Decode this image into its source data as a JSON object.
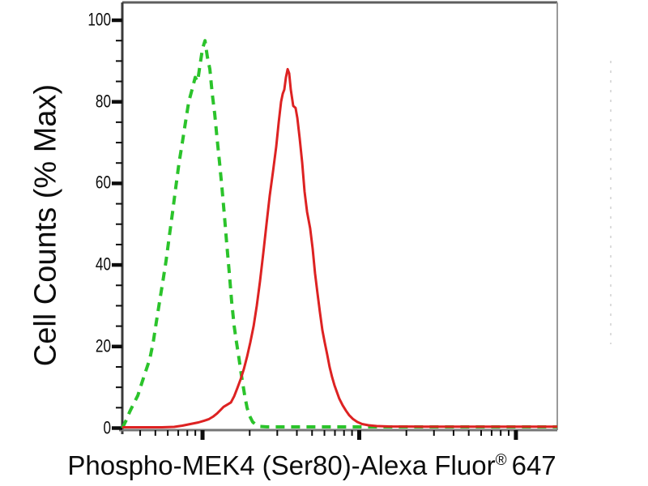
{
  "chart_data": {
    "type": "line",
    "subtype": "flow-cytometry-overlay-histogram",
    "title": "",
    "ylabel": "Cell Counts (% Max)",
    "xlabel_main": "Phospho-MEK4 (Ser80)-Alexa Fluor",
    "xlabel_sup": "®",
    "xlabel_suffix": "647",
    "grid": false,
    "legend": "none",
    "x_axis": {
      "scale": "log10",
      "range_log": [
        0.488,
        3.264
      ],
      "major_ticks_log": [
        1.0,
        2.0,
        3.0
      ],
      "minor_ticks_log": [
        0.602,
        0.699,
        0.778,
        0.845,
        0.903,
        0.954,
        1.301,
        1.477,
        1.602,
        1.699,
        1.778,
        1.845,
        1.903,
        1.954,
        2.301,
        2.477,
        2.602,
        2.699,
        2.778,
        2.845,
        2.903,
        2.954
      ],
      "tick_labels": []
    },
    "y_axis": {
      "range": [
        0,
        100
      ],
      "major_ticks": [
        0,
        20,
        40,
        60,
        80,
        100
      ],
      "major_tick_labels": [
        "0",
        "20",
        "40",
        "60",
        "80",
        "100"
      ],
      "minor_tick_step": 5
    },
    "series": [
      {
        "name": "green-dashed",
        "style": "dashed",
        "color": "#2bc32b",
        "peak": {
          "x_log": 1.016,
          "y_pct": 95
        },
        "points": [
          [
            0.488,
            0
          ],
          [
            0.514,
            2
          ],
          [
            0.535,
            4
          ],
          [
            0.561,
            6
          ],
          [
            0.587,
            8
          ],
          [
            0.612,
            11
          ],
          [
            0.638,
            14
          ],
          [
            0.664,
            17
          ],
          [
            0.685,
            21
          ],
          [
            0.705,
            26
          ],
          [
            0.726,
            31
          ],
          [
            0.747,
            36
          ],
          [
            0.767,
            41
          ],
          [
            0.788,
            47
          ],
          [
            0.809,
            53
          ],
          [
            0.829,
            59
          ],
          [
            0.85,
            65
          ],
          [
            0.871,
            70
          ],
          [
            0.891,
            75
          ],
          [
            0.912,
            80
          ],
          [
            0.933,
            83
          ],
          [
            0.953,
            86
          ],
          [
            0.969,
            85
          ],
          [
            0.984,
            89
          ],
          [
            1.0,
            93
          ],
          [
            1.016,
            95
          ],
          [
            1.031,
            91
          ],
          [
            1.047,
            88
          ],
          [
            1.062,
            82
          ],
          [
            1.078,
            77
          ],
          [
            1.093,
            71
          ],
          [
            1.109,
            65
          ],
          [
            1.124,
            59
          ],
          [
            1.14,
            52
          ],
          [
            1.155,
            45
          ],
          [
            1.171,
            38
          ],
          [
            1.186,
            31
          ],
          [
            1.202,
            25
          ],
          [
            1.217,
            21
          ],
          [
            1.233,
            17
          ],
          [
            1.248,
            13
          ],
          [
            1.269,
            8
          ],
          [
            1.284,
            5
          ],
          [
            1.3,
            3
          ],
          [
            1.32,
            1.5
          ],
          [
            1.341,
            0.8
          ],
          [
            1.367,
            0.4
          ],
          [
            1.413,
            0.3
          ],
          [
            1.568,
            0.3
          ],
          [
            1.775,
            0.3
          ],
          [
            2.034,
            0.3
          ],
          [
            2.395,
            0.3
          ],
          [
            2.809,
            0.3
          ],
          [
            3.264,
            0.3
          ]
        ]
      },
      {
        "name": "red-solid",
        "style": "solid",
        "color": "#dd2222",
        "peak": {
          "x_log": 1.543,
          "y_pct": 88
        },
        "points": [
          [
            0.488,
            0.2
          ],
          [
            0.742,
            0.2
          ],
          [
            0.819,
            0.3
          ],
          [
            0.871,
            0.6
          ],
          [
            0.922,
            1
          ],
          [
            0.974,
            1.4
          ],
          [
            1.01,
            1.8
          ],
          [
            1.041,
            2.2
          ],
          [
            1.067,
            2.8
          ],
          [
            1.093,
            3.6
          ],
          [
            1.114,
            4.4
          ],
          [
            1.134,
            5.2
          ],
          [
            1.16,
            5.8
          ],
          [
            1.181,
            6.3
          ],
          [
            1.202,
            7.8
          ],
          [
            1.222,
            9.8
          ],
          [
            1.243,
            12
          ],
          [
            1.264,
            14.5
          ],
          [
            1.284,
            17.5
          ],
          [
            1.305,
            21
          ],
          [
            1.326,
            25
          ],
          [
            1.346,
            30
          ],
          [
            1.367,
            36
          ],
          [
            1.388,
            43
          ],
          [
            1.408,
            50
          ],
          [
            1.429,
            57
          ],
          [
            1.45,
            63
          ],
          [
            1.47,
            69
          ],
          [
            1.486,
            75
          ],
          [
            1.501,
            80
          ],
          [
            1.512,
            82
          ],
          [
            1.522,
            83
          ],
          [
            1.532,
            86
          ],
          [
            1.543,
            88
          ],
          [
            1.553,
            87
          ],
          [
            1.563,
            83
          ],
          [
            1.579,
            79
          ],
          [
            1.594,
            78.5
          ],
          [
            1.605,
            76
          ],
          [
            1.62,
            71
          ],
          [
            1.636,
            65
          ],
          [
            1.651,
            58
          ],
          [
            1.667,
            53
          ],
          [
            1.687,
            49
          ],
          [
            1.703,
            44
          ],
          [
            1.718,
            38
          ],
          [
            1.734,
            33
          ],
          [
            1.749,
            28.5
          ],
          [
            1.765,
            24
          ],
          [
            1.78,
            21
          ],
          [
            1.796,
            18
          ],
          [
            1.811,
            15
          ],
          [
            1.827,
            12.5
          ],
          [
            1.842,
            10.5
          ],
          [
            1.858,
            8.8
          ],
          [
            1.873,
            7.2
          ],
          [
            1.894,
            5.6
          ],
          [
            1.915,
            4.3
          ],
          [
            1.935,
            3.2
          ],
          [
            1.961,
            2.2
          ],
          [
            1.987,
            1.5
          ],
          [
            2.018,
            1
          ],
          [
            2.059,
            0.7
          ],
          [
            2.111,
            0.5
          ],
          [
            2.189,
            0.4
          ],
          [
            2.395,
            0.35
          ],
          [
            2.705,
            0.35
          ],
          [
            3.016,
            0.35
          ],
          [
            3.264,
            0.35
          ]
        ]
      }
    ],
    "colors": {
      "axis_line": "#757575",
      "y_axis_line": "#3a3a3a",
      "tick": "#0d0d0d",
      "border_top": "#5e5e5e",
      "border_right": "#9a9a9a",
      "faint_guide": "#dcdcdc",
      "background": "#ffffff"
    }
  }
}
